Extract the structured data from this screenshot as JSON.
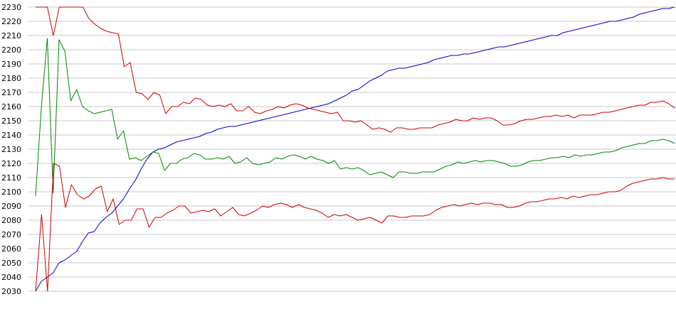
{
  "chart_data": {
    "type": "line",
    "title": "",
    "xlabel": "",
    "ylabel": "",
    "ylim": [
      2030,
      2230
    ],
    "yticks": [
      2030,
      2040,
      2050,
      2060,
      2070,
      2080,
      2090,
      2100,
      2110,
      2120,
      2130,
      2140,
      2150,
      2160,
      2170,
      2180,
      2190,
      2200,
      2210,
      2220,
      2230
    ],
    "grid": true,
    "legend": "none",
    "series": [
      {
        "color": "#0000cc",
        "values": [
          2030,
          2037,
          2040,
          2043,
          2050,
          2052,
          2055,
          2058,
          2065,
          2071,
          2072,
          2078,
          2082,
          2085,
          2090,
          2095,
          2102,
          2108,
          2116,
          2123,
          2128,
          2130,
          2131,
          2133,
          2135,
          2136,
          2137,
          2138,
          2139,
          2141,
          2142,
          2144,
          2145,
          2146,
          2146,
          2147,
          2148,
          2149,
          2150,
          2151,
          2152,
          2153,
          2154,
          2155,
          2156,
          2157,
          2158,
          2159,
          2160,
          2161,
          2162,
          2164,
          2166,
          2168,
          2171,
          2172,
          2175,
          2178,
          2180,
          2182,
          2185,
          2186,
          2187,
          2187,
          2188,
          2189,
          2190,
          2191,
          2193,
          2194,
          2195,
          2196,
          2196,
          2197,
          2197,
          2198,
          2199,
          2200,
          2201,
          2202,
          2202,
          2203,
          2204,
          2205,
          2206,
          2207,
          2208,
          2209,
          2210,
          2210,
          2212,
          2213,
          2214,
          2215,
          2216,
          2217,
          2218,
          2219,
          2220,
          2220,
          2221,
          2222,
          2223,
          2225,
          2226,
          2227,
          2228,
          2229,
          2229,
          2230
        ]
      },
      {
        "color": "#cc0000",
        "values": [
          2230,
          2230,
          2230,
          2210,
          2230,
          2230,
          2230,
          2230,
          2230,
          2222,
          2218,
          2215,
          2213,
          2212,
          2211,
          2188,
          2191,
          2170,
          2169,
          2165,
          2170,
          2168,
          2155,
          2160,
          2160,
          2163,
          2162,
          2166,
          2165,
          2161,
          2160,
          2161,
          2160,
          2162,
          2157,
          2157,
          2160,
          2156,
          2155,
          2157,
          2158,
          2160,
          2159,
          2161,
          2162,
          2161,
          2159,
          2158,
          2157,
          2156,
          2155,
          2156,
          2150,
          2150,
          2149,
          2150,
          2147,
          2144,
          2145,
          2144,
          2142,
          2145,
          2145,
          2144,
          2144,
          2145,
          2145,
          2145,
          2147,
          2148,
          2149,
          2151,
          2150,
          2150,
          2152,
          2151,
          2152,
          2152,
          2150,
          2147,
          2147,
          2148,
          2150,
          2151,
          2151,
          2152,
          2153,
          2153,
          2154,
          2153,
          2154,
          2152,
          2154,
          2154,
          2154,
          2155,
          2156,
          2156,
          2157,
          2158,
          2159,
          2160,
          2161,
          2161,
          2163,
          2163,
          2164,
          2162,
          2159
        ]
      },
      {
        "color": "#008800",
        "values": [
          2097,
          2160,
          2208,
          2099,
          2207,
          2199,
          2164,
          2172,
          2160,
          2157,
          2155,
          2156,
          2157,
          2158,
          2137,
          2143,
          2123,
          2124,
          2122,
          2125,
          2128,
          2127,
          2115,
          2120,
          2120,
          2123,
          2124,
          2127,
          2126,
          2123,
          2123,
          2124,
          2123,
          2125,
          2120,
          2121,
          2124,
          2120,
          2119,
          2120,
          2121,
          2124,
          2123,
          2125,
          2126,
          2125,
          2123,
          2125,
          2123,
          2122,
          2120,
          2122,
          2116,
          2117,
          2116,
          2117,
          2115,
          2112,
          2113,
          2114,
          2112,
          2110,
          2114,
          2114,
          2113,
          2113,
          2114,
          2114,
          2114,
          2116,
          2118,
          2119,
          2121,
          2120,
          2121,
          2122,
          2121,
          2122,
          2122,
          2121,
          2120,
          2118,
          2118,
          2119,
          2121,
          2122,
          2122,
          2123,
          2124,
          2124,
          2125,
          2124,
          2126,
          2125,
          2126,
          2126,
          2127,
          2128,
          2128,
          2129,
          2131,
          2132,
          2133,
          2134,
          2134,
          2136,
          2136,
          2137,
          2136,
          2134
        ]
      },
      {
        "color": "#cc0000",
        "values": [
          2030,
          2084,
          2030,
          2120,
          2118,
          2089,
          2105,
          2098,
          2095,
          2097,
          2102,
          2104,
          2086,
          2095,
          2077,
          2080,
          2080,
          2088,
          2088,
          2075,
          2082,
          2082,
          2085,
          2087,
          2090,
          2090,
          2085,
          2086,
          2087,
          2086,
          2088,
          2083,
          2086,
          2089,
          2084,
          2083,
          2085,
          2087,
          2090,
          2089,
          2091,
          2092,
          2091,
          2089,
          2091,
          2089,
          2088,
          2087,
          2085,
          2082,
          2084,
          2083,
          2084,
          2082,
          2080,
          2081,
          2082,
          2080,
          2078,
          2083,
          2083,
          2082,
          2082,
          2083,
          2083,
          2083,
          2084,
          2087,
          2089,
          2090,
          2091,
          2090,
          2091,
          2092,
          2091,
          2092,
          2092,
          2091,
          2091,
          2089,
          2089,
          2090,
          2092,
          2093,
          2093,
          2094,
          2095,
          2095,
          2096,
          2095,
          2097,
          2096,
          2097,
          2098,
          2098,
          2099,
          2100,
          2100,
          2101,
          2104,
          2106,
          2107,
          2108,
          2109,
          2109,
          2110,
          2109,
          2109
        ]
      }
    ]
  }
}
